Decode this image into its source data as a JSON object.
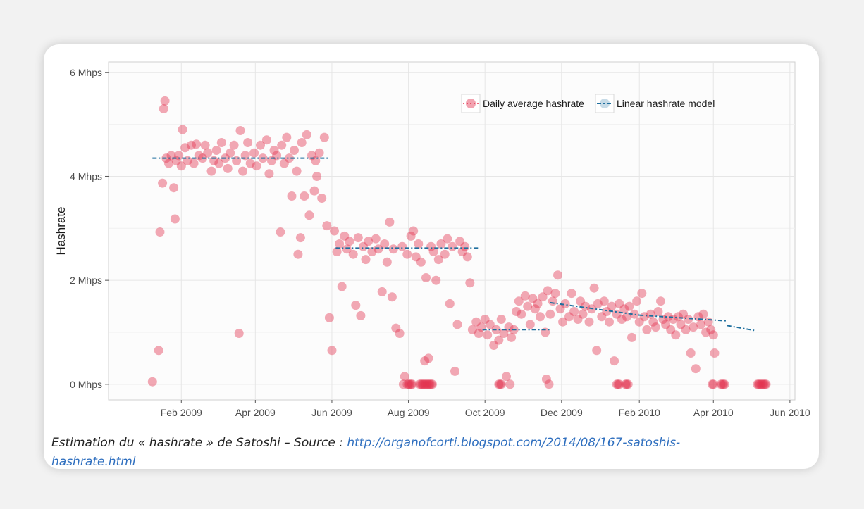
{
  "chart_data": {
    "type": "scatter",
    "ylabel": "Hashrate",
    "xlabel": "",
    "y_unit": "Mhps",
    "ylim": [
      -0.3,
      6.2
    ],
    "xlim": [
      "2008-12-05",
      "2010-06-05"
    ],
    "yticks": [
      0,
      2,
      4,
      6
    ],
    "ytick_labels": [
      "0 Mhps",
      "2 Mhps",
      "4 Mhps",
      "6 Mhps"
    ],
    "xticks": [
      "2009-02-01",
      "2009-04-01",
      "2009-06-01",
      "2009-08-01",
      "2009-10-01",
      "2009-12-01",
      "2010-02-01",
      "2010-04-01",
      "2010-06-01"
    ],
    "xtick_labels": [
      "Feb 2009",
      "Apr 2009",
      "Jun 2009",
      "Aug 2009",
      "Oct 2009",
      "Dec 2009",
      "Feb 2010",
      "Apr 2010",
      "Jun 2010"
    ],
    "grid": true,
    "legend": {
      "position": "top-right",
      "entries": [
        "Daily average hashrate",
        "Linear hashrate model"
      ]
    },
    "series": [
      {
        "name": "Daily average hashrate",
        "color": "#e3334f",
        "type": "scatter",
        "points": [
          [
            "2009-01-09",
            0.05
          ],
          [
            "2009-01-14",
            0.65
          ],
          [
            "2009-01-15",
            2.93
          ],
          [
            "2009-01-17",
            3.87
          ],
          [
            "2009-01-18",
            5.3
          ],
          [
            "2009-01-19",
            5.45
          ],
          [
            "2009-01-20",
            4.35
          ],
          [
            "2009-01-22",
            4.25
          ],
          [
            "2009-01-24",
            4.4
          ],
          [
            "2009-01-26",
            3.78
          ],
          [
            "2009-01-27",
            3.18
          ],
          [
            "2009-01-28",
            4.3
          ],
          [
            "2009-01-30",
            4.4
          ],
          [
            "2009-02-01",
            4.2
          ],
          [
            "2009-02-02",
            4.9
          ],
          [
            "2009-02-04",
            4.55
          ],
          [
            "2009-02-06",
            4.3
          ],
          [
            "2009-02-09",
            4.6
          ],
          [
            "2009-02-11",
            4.25
          ],
          [
            "2009-02-13",
            4.62
          ],
          [
            "2009-02-15",
            4.4
          ],
          [
            "2009-02-18",
            4.35
          ],
          [
            "2009-02-20",
            4.6
          ],
          [
            "2009-02-22",
            4.45
          ],
          [
            "2009-02-25",
            4.1
          ],
          [
            "2009-02-27",
            4.3
          ],
          [
            "2009-03-01",
            4.5
          ],
          [
            "2009-03-03",
            4.25
          ],
          [
            "2009-03-05",
            4.65
          ],
          [
            "2009-03-08",
            4.35
          ],
          [
            "2009-03-10",
            4.15
          ],
          [
            "2009-03-12",
            4.45
          ],
          [
            "2009-03-15",
            4.6
          ],
          [
            "2009-03-17",
            4.3
          ],
          [
            "2009-03-19",
            0.98
          ],
          [
            "2009-03-20",
            4.88
          ],
          [
            "2009-03-22",
            4.1
          ],
          [
            "2009-03-24",
            4.4
          ],
          [
            "2009-03-26",
            4.65
          ],
          [
            "2009-03-28",
            4.25
          ],
          [
            "2009-03-31",
            4.45
          ],
          [
            "2009-04-02",
            4.2
          ],
          [
            "2009-04-05",
            4.6
          ],
          [
            "2009-04-07",
            4.35
          ],
          [
            "2009-04-10",
            4.7
          ],
          [
            "2009-04-12",
            4.05
          ],
          [
            "2009-04-14",
            4.3
          ],
          [
            "2009-04-16",
            4.5
          ],
          [
            "2009-04-18",
            4.4
          ],
          [
            "2009-04-21",
            2.93
          ],
          [
            "2009-04-22",
            4.6
          ],
          [
            "2009-04-24",
            4.25
          ],
          [
            "2009-04-26",
            4.75
          ],
          [
            "2009-04-28",
            4.35
          ],
          [
            "2009-04-30",
            3.62
          ],
          [
            "2009-05-02",
            4.5
          ],
          [
            "2009-05-04",
            4.1
          ],
          [
            "2009-05-05",
            2.5
          ],
          [
            "2009-05-07",
            2.82
          ],
          [
            "2009-05-08",
            4.65
          ],
          [
            "2009-05-10",
            3.62
          ],
          [
            "2009-05-12",
            4.8
          ],
          [
            "2009-05-14",
            3.25
          ],
          [
            "2009-05-16",
            4.4
          ],
          [
            "2009-05-18",
            3.72
          ],
          [
            "2009-05-19",
            4.3
          ],
          [
            "2009-05-20",
            4.0
          ],
          [
            "2009-05-22",
            4.45
          ],
          [
            "2009-05-24",
            3.58
          ],
          [
            "2009-05-26",
            4.75
          ],
          [
            "2009-05-28",
            3.05
          ],
          [
            "2009-05-30",
            1.28
          ],
          [
            "2009-06-01",
            0.65
          ],
          [
            "2009-06-03",
            2.95
          ],
          [
            "2009-06-05",
            2.55
          ],
          [
            "2009-06-07",
            2.7
          ],
          [
            "2009-06-09",
            1.88
          ],
          [
            "2009-06-11",
            2.85
          ],
          [
            "2009-06-13",
            2.6
          ],
          [
            "2009-06-15",
            2.75
          ],
          [
            "2009-06-18",
            2.5
          ],
          [
            "2009-06-20",
            1.52
          ],
          [
            "2009-06-22",
            2.82
          ],
          [
            "2009-06-24",
            1.32
          ],
          [
            "2009-06-26",
            2.65
          ],
          [
            "2009-06-28",
            2.4
          ],
          [
            "2009-06-30",
            2.75
          ],
          [
            "2009-07-03",
            2.55
          ],
          [
            "2009-07-06",
            2.8
          ],
          [
            "2009-07-08",
            2.6
          ],
          [
            "2009-07-11",
            1.78
          ],
          [
            "2009-07-13",
            2.7
          ],
          [
            "2009-07-15",
            2.35
          ],
          [
            "2009-07-17",
            3.12
          ],
          [
            "2009-07-19",
            1.68
          ],
          [
            "2009-07-20",
            2.6
          ],
          [
            "2009-07-22",
            1.08
          ],
          [
            "2009-07-25",
            0.98
          ],
          [
            "2009-07-27",
            2.65
          ],
          [
            "2009-07-29",
            0.15
          ],
          [
            "2009-07-31",
            2.5
          ],
          [
            "2009-08-03",
            2.85
          ],
          [
            "2009-08-05",
            2.95
          ],
          [
            "2009-08-07",
            2.45
          ],
          [
            "2009-08-09",
            2.7
          ],
          [
            "2009-08-11",
            2.35
          ],
          [
            "2009-08-14",
            0.45
          ],
          [
            "2009-08-15",
            2.05
          ],
          [
            "2009-08-17",
            0.5
          ],
          [
            "2009-08-19",
            2.65
          ],
          [
            "2009-08-21",
            2.55
          ],
          [
            "2009-08-23",
            2.0
          ],
          [
            "2009-08-25",
            2.4
          ],
          [
            "2009-08-27",
            2.7
          ],
          [
            "2009-08-30",
            2.5
          ],
          [
            "2009-09-01",
            2.8
          ],
          [
            "2009-09-03",
            1.55
          ],
          [
            "2009-09-05",
            2.65
          ],
          [
            "2009-09-07",
            0.25
          ],
          [
            "2009-09-09",
            1.15
          ],
          [
            "2009-09-11",
            2.75
          ],
          [
            "2009-09-13",
            2.55
          ],
          [
            "2009-09-15",
            2.65
          ],
          [
            "2009-09-17",
            2.45
          ],
          [
            "2009-09-19",
            1.95
          ],
          [
            "2009-09-21",
            1.05
          ],
          [
            "2009-09-24",
            1.2
          ],
          [
            "2009-09-26",
            0.98
          ],
          [
            "2009-09-28",
            1.1
          ],
          [
            "2009-10-01",
            1.25
          ],
          [
            "2009-10-03",
            0.95
          ],
          [
            "2009-10-05",
            1.15
          ],
          [
            "2009-10-08",
            0.75
          ],
          [
            "2009-10-10",
            1.05
          ],
          [
            "2009-10-12",
            0.85
          ],
          [
            "2009-10-14",
            1.25
          ],
          [
            "2009-10-16",
            0.98
          ],
          [
            "2009-10-18",
            0.15
          ],
          [
            "2009-10-20",
            1.1
          ],
          [
            "2009-10-22",
            0.9
          ],
          [
            "2009-10-24",
            1.05
          ],
          [
            "2009-10-26",
            1.4
          ],
          [
            "2009-10-28",
            1.6
          ],
          [
            "2009-10-30",
            1.35
          ],
          [
            "2009-11-02",
            1.7
          ],
          [
            "2009-11-04",
            1.5
          ],
          [
            "2009-11-06",
            1.15
          ],
          [
            "2009-11-08",
            1.65
          ],
          [
            "2009-11-10",
            1.45
          ],
          [
            "2009-11-12",
            1.55
          ],
          [
            "2009-11-14",
            1.3
          ],
          [
            "2009-11-16",
            1.68
          ],
          [
            "2009-11-18",
            1.0
          ],
          [
            "2009-11-19",
            0.1
          ],
          [
            "2009-11-20",
            1.8
          ],
          [
            "2009-11-22",
            1.35
          ],
          [
            "2009-11-24",
            1.6
          ],
          [
            "2009-11-26",
            1.75
          ],
          [
            "2009-11-28",
            2.1
          ],
          [
            "2009-11-30",
            1.45
          ],
          [
            "2009-12-02",
            1.2
          ],
          [
            "2009-12-04",
            1.55
          ],
          [
            "2009-12-07",
            1.3
          ],
          [
            "2009-12-09",
            1.75
          ],
          [
            "2009-12-11",
            1.4
          ],
          [
            "2009-12-14",
            1.25
          ],
          [
            "2009-12-16",
            1.6
          ],
          [
            "2009-12-18",
            1.35
          ],
          [
            "2009-12-20",
            1.5
          ],
          [
            "2009-12-23",
            1.2
          ],
          [
            "2009-12-25",
            1.45
          ],
          [
            "2009-12-27",
            1.85
          ],
          [
            "2009-12-29",
            0.65
          ],
          [
            "2009-12-30",
            1.55
          ],
          [
            "2010-01-02",
            1.3
          ],
          [
            "2010-01-04",
            1.6
          ],
          [
            "2010-01-06",
            1.4
          ],
          [
            "2010-01-08",
            1.2
          ],
          [
            "2010-01-10",
            1.5
          ],
          [
            "2010-01-12",
            0.45
          ],
          [
            "2010-01-14",
            1.35
          ],
          [
            "2010-01-16",
            1.55
          ],
          [
            "2010-01-18",
            1.25
          ],
          [
            "2010-01-20",
            1.45
          ],
          [
            "2010-01-22",
            1.3
          ],
          [
            "2010-01-24",
            1.5
          ],
          [
            "2010-01-26",
            0.9
          ],
          [
            "2010-01-28",
            1.35
          ],
          [
            "2010-01-30",
            1.6
          ],
          [
            "2010-02-01",
            1.2
          ],
          [
            "2010-02-03",
            1.75
          ],
          [
            "2010-02-05",
            1.3
          ],
          [
            "2010-02-07",
            1.05
          ],
          [
            "2010-02-10",
            1.35
          ],
          [
            "2010-02-12",
            1.2
          ],
          [
            "2010-02-14",
            1.1
          ],
          [
            "2010-02-16",
            1.4
          ],
          [
            "2010-02-18",
            1.6
          ],
          [
            "2010-02-20",
            1.25
          ],
          [
            "2010-02-22",
            1.15
          ],
          [
            "2010-02-24",
            1.3
          ],
          [
            "2010-02-26",
            1.05
          ],
          [
            "2010-02-28",
            1.25
          ],
          [
            "2010-03-02",
            0.95
          ],
          [
            "2010-03-04",
            1.3
          ],
          [
            "2010-03-06",
            1.15
          ],
          [
            "2010-03-08",
            1.35
          ],
          [
            "2010-03-10",
            1.05
          ],
          [
            "2010-03-12",
            1.25
          ],
          [
            "2010-03-14",
            0.6
          ],
          [
            "2010-03-16",
            1.1
          ],
          [
            "2010-03-18",
            0.3
          ],
          [
            "2010-03-20",
            1.3
          ],
          [
            "2010-03-22",
            1.15
          ],
          [
            "2010-03-24",
            1.35
          ],
          [
            "2010-03-26",
            1.0
          ],
          [
            "2010-03-28",
            1.2
          ],
          [
            "2010-03-30",
            1.05
          ],
          [
            "2010-04-01",
            0.95
          ],
          [
            "2010-04-02",
            0.6
          ]
        ],
        "zero_days": [
          "2009-07-28",
          "2009-07-31",
          "2009-08-01",
          "2009-08-02",
          "2009-08-03",
          "2009-08-04",
          "2009-08-10",
          "2009-08-11",
          "2009-08-12",
          "2009-08-13",
          "2009-08-14",
          "2009-08-15",
          "2009-08-16",
          "2009-08-17",
          "2009-08-18",
          "2009-08-19",
          "2009-08-20",
          "2009-10-12",
          "2009-10-13",
          "2009-10-14",
          "2009-10-21",
          "2009-11-21",
          "2010-01-14",
          "2010-01-15",
          "2010-01-16",
          "2010-01-21",
          "2010-01-22",
          "2010-01-23",
          "2010-03-31",
          "2010-04-01",
          "2010-04-07",
          "2010-04-08",
          "2010-04-09",
          "2010-04-10",
          "2010-05-06",
          "2010-05-07",
          "2010-05-08",
          "2010-05-09",
          "2010-05-10",
          "2010-05-11",
          "2010-05-12",
          "2010-05-13"
        ]
      },
      {
        "name": "Linear hashrate model",
        "color": "#1f6f9e",
        "type": "line",
        "segments": [
          {
            "x": [
              "2009-01-09",
              "2009-05-30"
            ],
            "y": [
              4.35,
              4.35
            ]
          },
          {
            "x": [
              "2009-06-04",
              "2009-09-26"
            ],
            "y": [
              2.62,
              2.62
            ]
          },
          {
            "x": [
              "2009-09-29",
              "2009-11-22"
            ],
            "y": [
              1.05,
              1.05
            ]
          },
          {
            "x": [
              "2009-11-22",
              "2010-02-01"
            ],
            "y": [
              1.57,
              1.33
            ]
          },
          {
            "x": [
              "2010-02-01",
              "2010-04-12"
            ],
            "y": [
              1.33,
              1.22
            ]
          },
          {
            "x": [
              "2010-04-12",
              "2010-05-05"
            ],
            "y": [
              1.13,
              1.03
            ]
          }
        ]
      }
    ]
  },
  "caption": {
    "text": "Estimation du « hashrate » de Satoshi – Source : ",
    "link": "http://organofcorti.blogspot.com/2014/08/167-satoshis-hashrate.html"
  }
}
